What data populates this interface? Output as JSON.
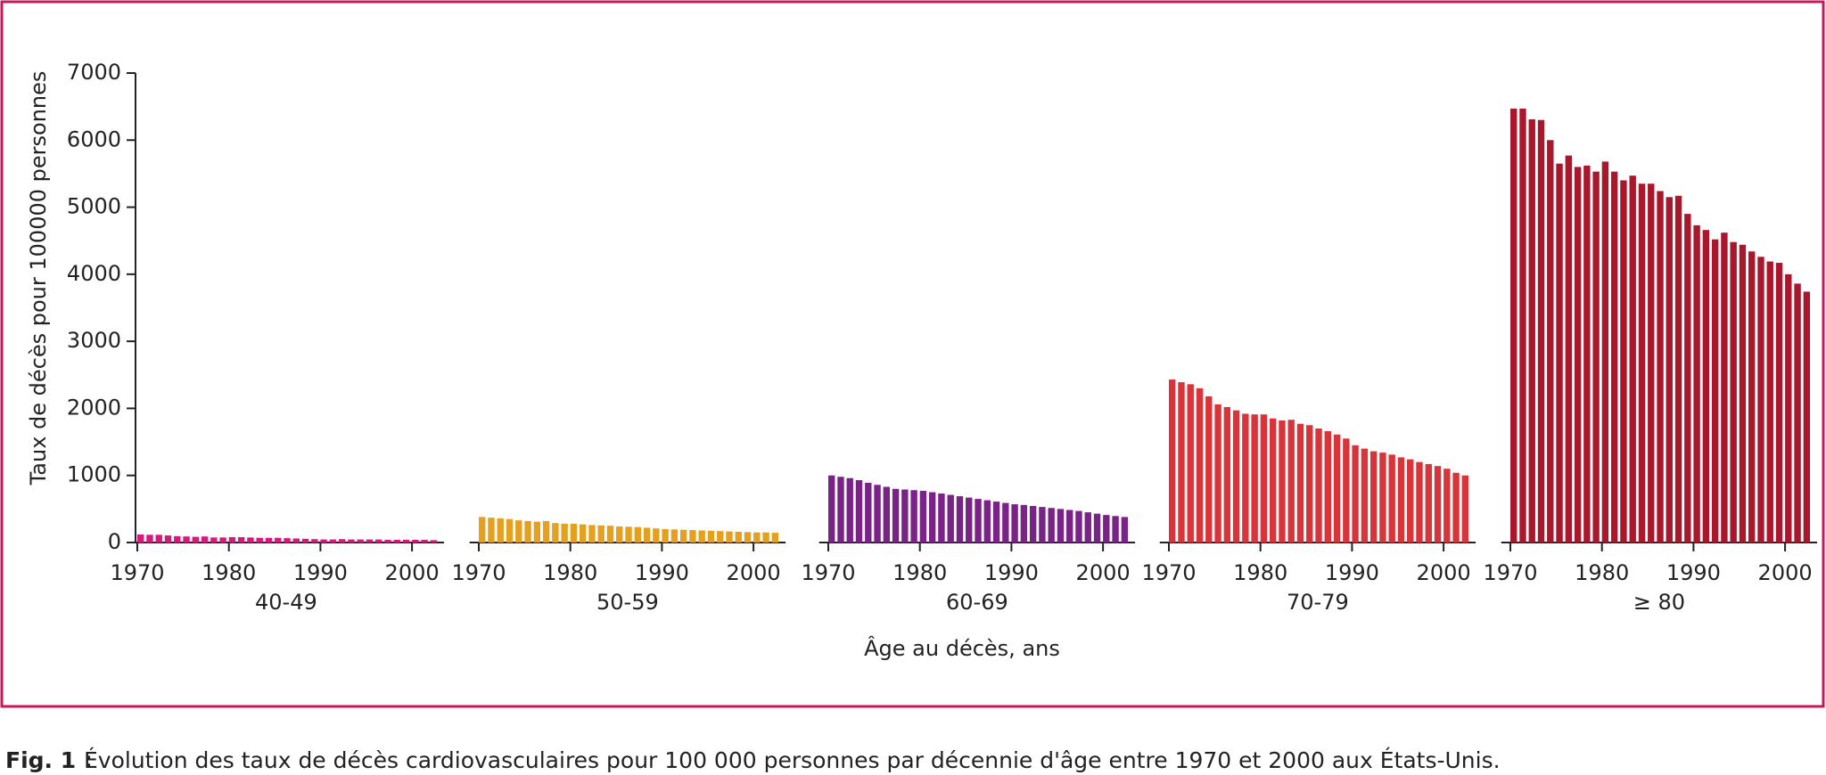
{
  "chart_data": {
    "type": "bar",
    "ylabel": "Taux de décès pour 100000 personnes",
    "xlabel": "Âge au décès, ans",
    "ylim": [
      0,
      7000
    ],
    "yticks": [
      0,
      1000,
      2000,
      3000,
      4000,
      5000,
      6000,
      7000
    ],
    "xlim": [
      1969,
      2003.5
    ],
    "xticks": [
      1970,
      1980,
      1990,
      2000
    ],
    "x": [
      1970,
      1971,
      1972,
      1973,
      1974,
      1975,
      1976,
      1977,
      1978,
      1979,
      1980,
      1981,
      1982,
      1983,
      1984,
      1985,
      1986,
      1987,
      1988,
      1989,
      1990,
      1991,
      1992,
      1993,
      1994,
      1995,
      1996,
      1997,
      1998,
      1999,
      2000,
      2001,
      2002
    ],
    "grid": false,
    "series": [
      {
        "name": "40-49",
        "color": "#d6197f",
        "values": [
          120,
          115,
          115,
          105,
          95,
          90,
          85,
          90,
          75,
          75,
          80,
          80,
          75,
          70,
          70,
          70,
          65,
          60,
          55,
          50,
          45,
          45,
          50,
          45,
          45,
          45,
          45,
          40,
          40,
          40,
          40,
          40,
          35
        ]
      },
      {
        "name": "50-59",
        "color": "#e5a020",
        "values": [
          380,
          370,
          360,
          350,
          330,
          320,
          310,
          320,
          290,
          280,
          280,
          270,
          260,
          255,
          250,
          240,
          235,
          230,
          220,
          210,
          200,
          195,
          190,
          185,
          180,
          175,
          170,
          165,
          160,
          155,
          150,
          150,
          145
        ]
      },
      {
        "name": "60-69",
        "color": "#7b2289",
        "values": [
          1000,
          980,
          960,
          930,
          890,
          860,
          830,
          800,
          790,
          780,
          770,
          750,
          730,
          710,
          690,
          670,
          650,
          630,
          610,
          590,
          570,
          560,
          545,
          530,
          515,
          500,
          485,
          470,
          450,
          430,
          410,
          395,
          380
        ]
      },
      {
        "name": "70-79",
        "color": "#d9343a",
        "values": [
          2430,
          2390,
          2360,
          2300,
          2180,
          2060,
          2020,
          1970,
          1920,
          1910,
          1910,
          1850,
          1820,
          1830,
          1770,
          1750,
          1700,
          1660,
          1610,
          1550,
          1450,
          1400,
          1360,
          1340,
          1310,
          1270,
          1240,
          1200,
          1170,
          1140,
          1100,
          1040,
          1000
        ]
      },
      {
        "name": "≥ 80",
        "color": "#a8172b",
        "values": [
          6470,
          6470,
          6310,
          6300,
          6000,
          5650,
          5770,
          5600,
          5620,
          5530,
          5680,
          5530,
          5400,
          5470,
          5350,
          5350,
          5240,
          5150,
          5170,
          4900,
          4730,
          4660,
          4520,
          4620,
          4480,
          4440,
          4340,
          4260,
          4190,
          4170,
          4000,
          3860,
          3740
        ]
      }
    ]
  },
  "caption": {
    "label": "Fig. 1 :",
    "text": "Évolution des taux de décès cardiovasculaires pour 100 000 personnes par décennie d'âge entre 1970 et 2000 aux États-Unis."
  }
}
